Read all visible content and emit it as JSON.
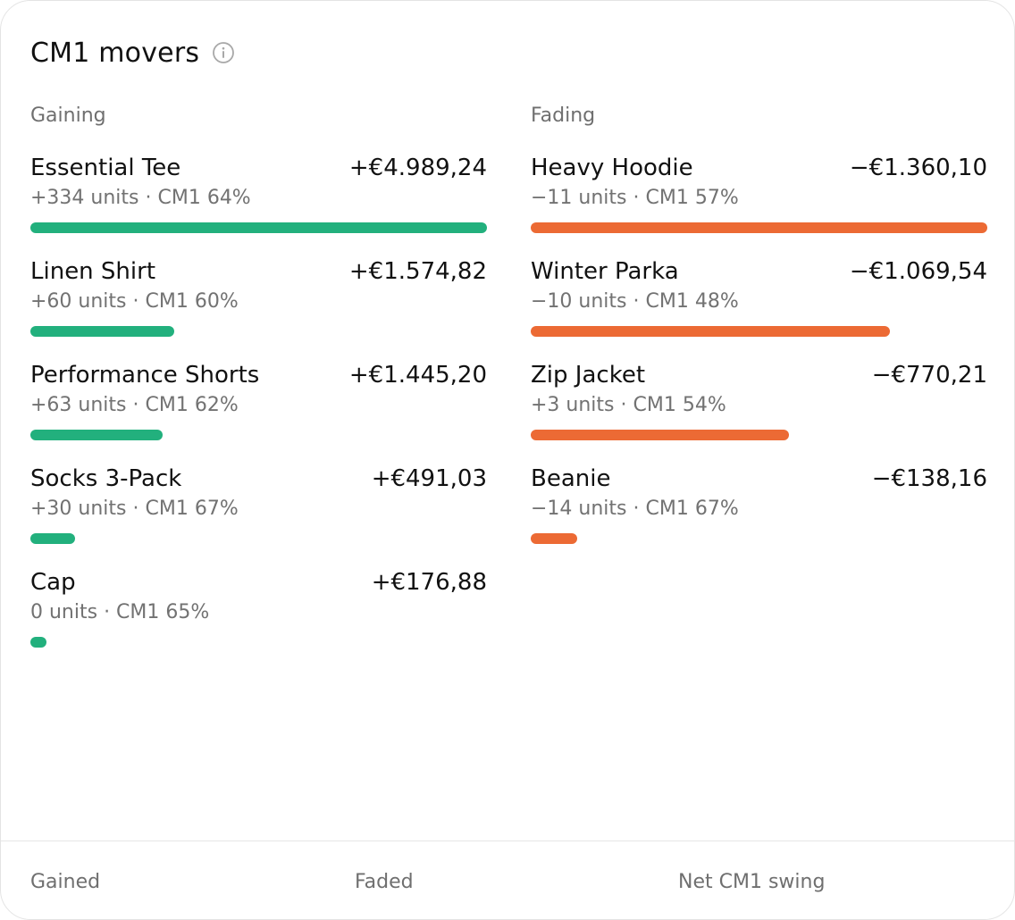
{
  "card": {
    "title": "CM1 movers",
    "info_icon": "info-circle-icon"
  },
  "gaining": {
    "heading": "Gaining",
    "color": "#22b07d",
    "items": [
      {
        "name": "Essential Tee",
        "value": "+€4.989,24",
        "detail": "+334 units · CM1 64%",
        "share": 1.0
      },
      {
        "name": "Linen Shirt",
        "value": "+€1.574,82",
        "detail": "+60 units · CM1 60%",
        "share": 0.3156
      },
      {
        "name": "Performance Shorts",
        "value": "+€1.445,20",
        "detail": "+63 units · CM1 62%",
        "share": 0.2897
      },
      {
        "name": "Socks 3-Pack",
        "value": "+€491,03",
        "detail": "+30 units · CM1 67%",
        "share": 0.0984
      },
      {
        "name": "Cap",
        "value": "+€176,88",
        "detail": "0 units · CM1 65%",
        "share": 0.0355
      }
    ]
  },
  "fading": {
    "heading": "Fading",
    "color": "#ec6a34",
    "items": [
      {
        "name": "Heavy Hoodie",
        "value": "−€1.360,10",
        "detail": "−11 units · CM1 57%",
        "share": 1.0
      },
      {
        "name": "Winter Parka",
        "value": "−€1.069,54",
        "detail": "−10 units · CM1 48%",
        "share": 0.7864
      },
      {
        "name": "Zip Jacket",
        "value": "−€770,21",
        "detail": "+3 units · CM1 54%",
        "share": 0.5663
      },
      {
        "name": "Beanie",
        "value": "−€138,16",
        "detail": "−14 units · CM1 67%",
        "share": 0.1016
      }
    ]
  },
  "footer": {
    "gained_label": "Gained",
    "faded_label": "Faded",
    "net_label": "Net CM1 swing"
  }
}
